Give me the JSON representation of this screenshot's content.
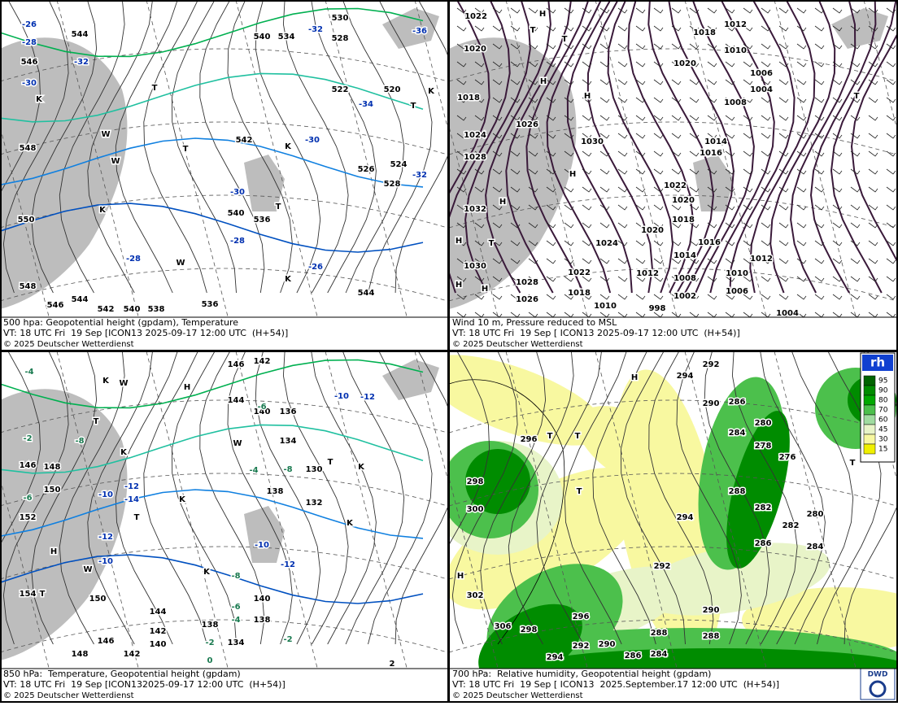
{
  "panels": [
    {
      "caption": "500 hpa: Geopotential height (gpdam), Temperature",
      "valid": "VT: 18 UTC Fri  19 Sep [ICON13 2025-09-17 12:00 UTC  (H+54)]",
      "copyright": "© 2025 Deutscher Wetterdienst",
      "labels": [
        544,
        540,
        534,
        530,
        528,
        -32,
        -36,
        -26,
        -28,
        546,
        -32,
        -30,
        522,
        520,
        -34,
        526,
        524,
        528,
        -32,
        -30,
        -30,
        -28,
        -28,
        -26,
        542,
        540,
        536,
        548,
        550,
        548,
        546,
        544,
        542,
        540,
        538,
        536,
        544
      ],
      "markers": [
        "T",
        "K",
        "W",
        "K",
        "T",
        "W",
        "K",
        "T",
        "K",
        "T",
        "W",
        "K"
      ]
    },
    {
      "caption": "Wind 10 m, Pressure reduced to MSL",
      "valid": "VT: 18 UTC Fri  19 Sep [ ICON13 2025-09-17 12:00 UTC  (H+54)]",
      "copyright": "© 2025 Deutscher Wetterdienst",
      "labels": [
        1022,
        1020,
        1018,
        1024,
        1028,
        1032,
        1030,
        1026,
        1030,
        1012,
        1018,
        1010,
        1020,
        1006,
        1004,
        1008,
        1014,
        1016,
        1022,
        1020,
        1018,
        1020,
        1024,
        1016,
        1014,
        1012,
        1012,
        1010,
        1008,
        1006,
        1002,
        998,
        1010,
        1022,
        1018,
        1028,
        1026,
        1004
      ],
      "markers": [
        "H",
        "T",
        "T",
        "H",
        "H",
        "H",
        "H",
        "T",
        "H",
        "T",
        "H",
        "H"
      ]
    },
    {
      "caption": "850 hPa:  Temperature, Geopotential height (gpdam)",
      "valid": "VT: 18 UTC Fri  19 Sep [ICON132025-09-17 12:00 UTC  (H+54)]",
      "copyright": "© 2025 Deutscher Wetterdienst",
      "labels": [
        146,
        142,
        -10,
        -12,
        144,
        140,
        136,
        -6,
        134,
        -8,
        130,
        -4,
        138,
        132,
        -8,
        -2,
        146,
        148,
        150,
        152,
        -6,
        -10,
        -12,
        -14,
        -12,
        -10,
        -10,
        -12,
        -8,
        154,
        150,
        140,
        -6,
        144,
        138,
        -4,
        138,
        142,
        134,
        -2,
        -2,
        140,
        146,
        148,
        142,
        0,
        2,
        -4
      ],
      "markers": [
        "K",
        "W",
        "H",
        "T",
        "K",
        "W",
        "T",
        "K",
        "T",
        "K",
        "K",
        "H",
        "T",
        "W",
        "K"
      ]
    },
    {
      "caption": "700 hPa:  Relative humidity, Geopotential height (gpdam)",
      "valid": "VT: 18 UTC Fri  19 Sep [ ICON13  2025.September.17 12:00 UTC  (H+54)]",
      "copyright": "© 2025 Deutscher Wetterdienst",
      "labels": [
        292,
        294,
        290,
        286,
        280,
        278,
        284,
        276,
        296,
        298,
        300,
        288,
        282,
        280,
        282,
        284,
        286,
        294,
        292,
        290,
        302,
        296,
        298,
        288,
        288,
        292,
        290,
        286,
        284,
        294,
        306
      ],
      "markers": [
        "H",
        "T",
        "T",
        "T",
        "H",
        "T"
      ]
    }
  ],
  "legend": {
    "title": "rh",
    "levels": [
      95,
      90,
      80,
      70,
      60,
      45,
      30,
      15
    ]
  },
  "logo": "DWD"
}
